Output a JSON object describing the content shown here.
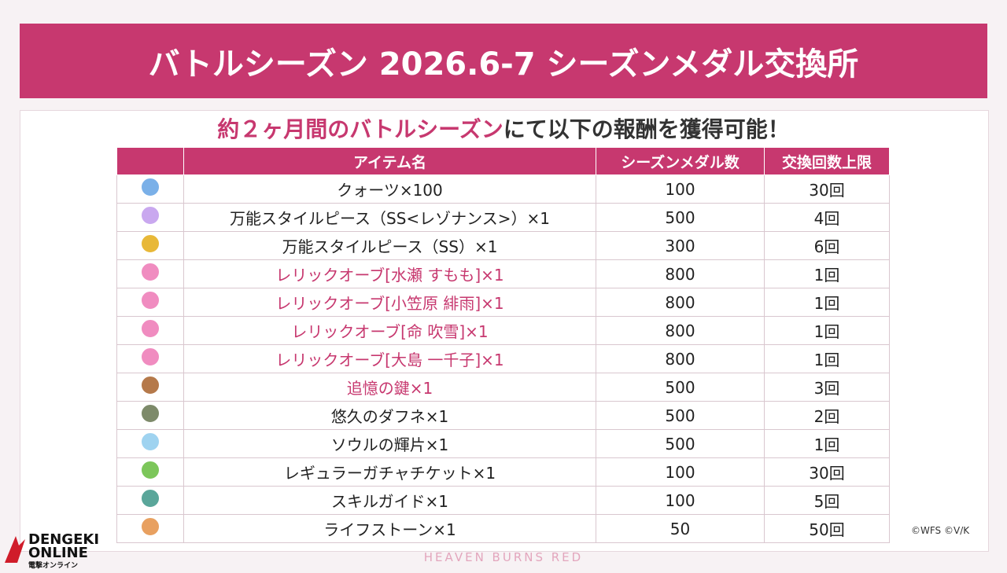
{
  "header": {
    "title": "バトルシーズン 2026.6-7 シーズンメダル交換所"
  },
  "subtitle": {
    "highlight": "約２ヶ月間のバトルシーズン",
    "rest": "にて以下の報酬を獲得可能！"
  },
  "table": {
    "columns": [
      "アイテム名",
      "シーズンメダル数",
      "交換回数上限"
    ],
    "rows": [
      {
        "name": "クォーツ×100",
        "medals": 100,
        "limit": "30回",
        "highlight": false
      },
      {
        "name": "万能スタイルピース（SS<レゾナンス>）×1",
        "medals": 500,
        "limit": "4回",
        "highlight": false
      },
      {
        "name": "万能スタイルピース（SS）×1",
        "medals": 300,
        "limit": "6回",
        "highlight": false
      },
      {
        "name": "レリックオーブ[水瀬 すもも]×1",
        "medals": 800,
        "limit": "1回",
        "highlight": true
      },
      {
        "name": "レリックオーブ[小笠原 緋雨]×1",
        "medals": 800,
        "limit": "1回",
        "highlight": true
      },
      {
        "name": "レリックオーブ[命 吹雪]×1",
        "medals": 800,
        "limit": "1回",
        "highlight": true
      },
      {
        "name": "レリックオーブ[大島 一千子]×1",
        "medals": 800,
        "limit": "1回",
        "highlight": true
      },
      {
        "name": "追憶の鍵×1",
        "medals": 500,
        "limit": "3回",
        "highlight": true
      },
      {
        "name": "悠久のダフネ×1",
        "medals": 500,
        "limit": "2回",
        "highlight": false
      },
      {
        "name": "ソウルの輝片×1",
        "medals": 500,
        "limit": "1回",
        "highlight": false
      },
      {
        "name": "レギュラーガチャチケット×1",
        "medals": 100,
        "limit": "30回",
        "highlight": false
      },
      {
        "name": "スキルガイド×1",
        "medals": 100,
        "limit": "5回",
        "highlight": false
      },
      {
        "name": "ライフストーン×1",
        "medals": 50,
        "limit": "50回",
        "highlight": false
      }
    ]
  },
  "footer": {
    "copyright": "©WFS ©V/K",
    "game": "HEAVEN BURNS RED",
    "logo": "DENGEKI",
    "logo2": "ONLINE",
    "logo_sub": "電撃オンライン"
  }
}
